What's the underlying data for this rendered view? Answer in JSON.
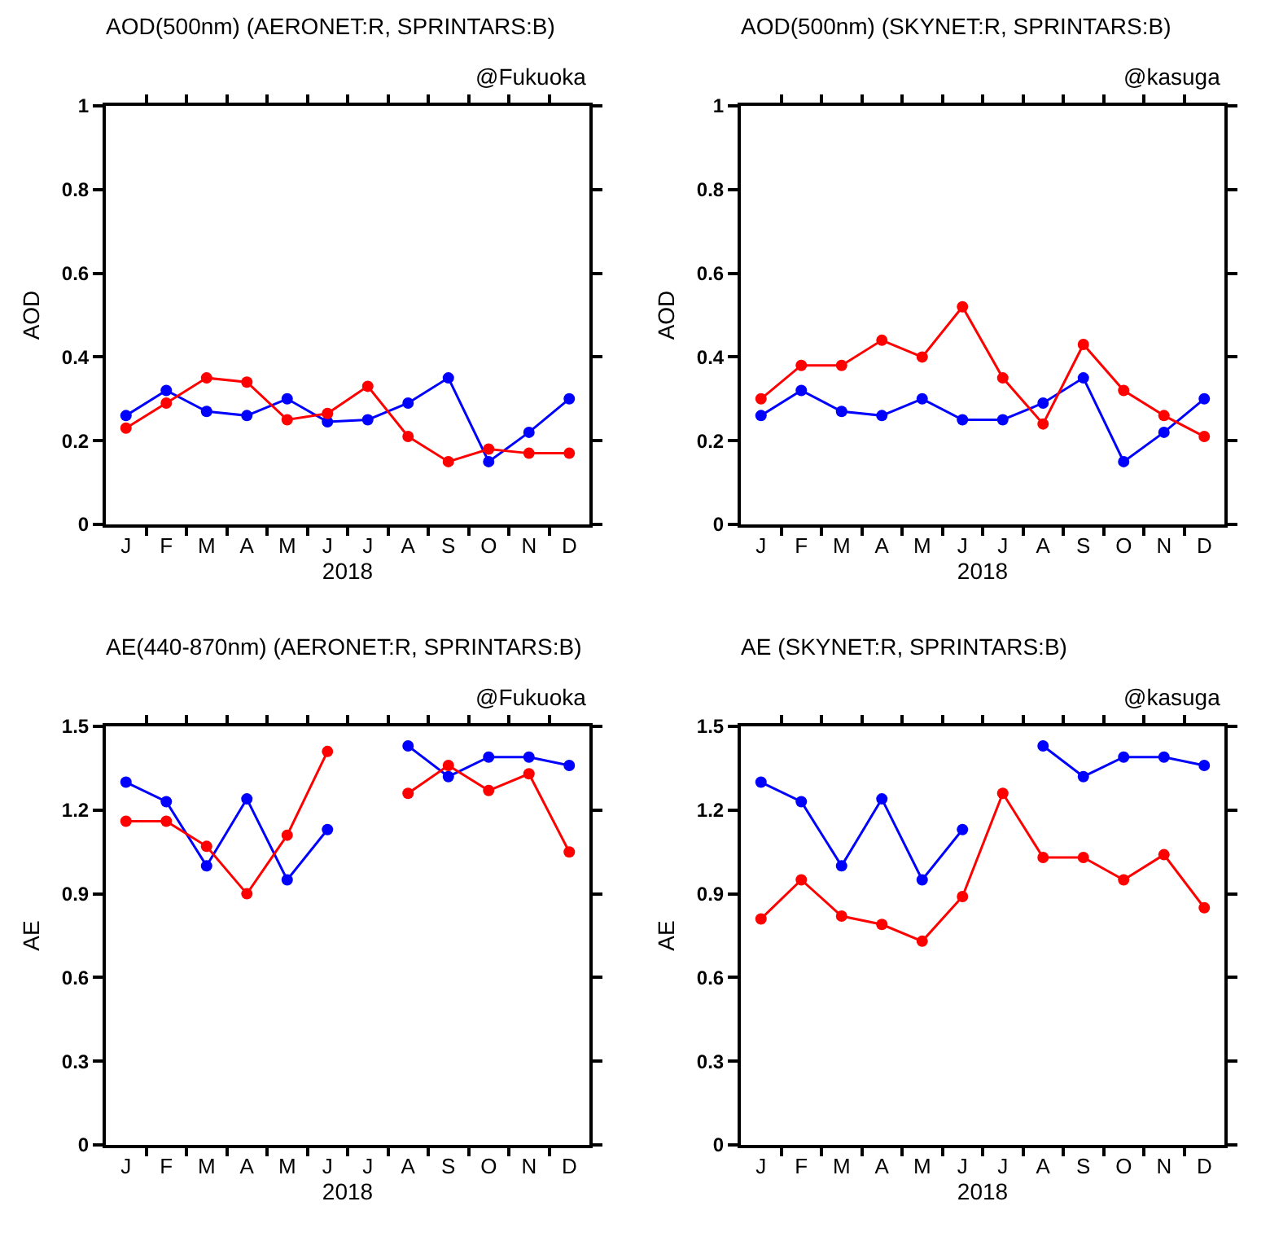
{
  "chart_data": [
    {
      "type": "line",
      "title": "AOD(500nm) (AERONET:R, SPRINTARS:B)",
      "subtitle": "@Fukuoka",
      "xlabel": "2018",
      "ylabel": "AOD",
      "categories": [
        "J",
        "F",
        "M",
        "A",
        "M",
        "J",
        "J",
        "A",
        "S",
        "O",
        "N",
        "D"
      ],
      "series": [
        {
          "color": "#0000ff",
          "values": [
            0.26,
            0.32,
            0.27,
            0.26,
            0.3,
            0.245,
            0.25,
            0.29,
            0.35,
            0.15,
            0.22,
            0.3
          ]
        },
        {
          "color": "#ff0000",
          "values": [
            0.23,
            0.29,
            0.35,
            0.34,
            0.25,
            0.265,
            0.33,
            0.21,
            0.15,
            0.18,
            0.17,
            0.17
          ]
        }
      ],
      "ylim": [
        0,
        1
      ],
      "yticks": [
        0,
        0.2,
        0.4,
        0.6,
        0.8,
        1
      ],
      "marker": "circle",
      "grid": false
    },
    {
      "type": "line",
      "title": "AOD(500nm) (SKYNET:R, SPRINTARS:B)",
      "subtitle": "@kasuga",
      "xlabel": "2018",
      "ylabel": "AOD",
      "categories": [
        "J",
        "F",
        "M",
        "A",
        "M",
        "J",
        "J",
        "A",
        "S",
        "O",
        "N",
        "D"
      ],
      "series": [
        {
          "color": "#0000ff",
          "values": [
            0.26,
            0.32,
            0.27,
            0.26,
            0.3,
            0.25,
            0.25,
            0.29,
            0.35,
            0.15,
            0.22,
            0.3
          ]
        },
        {
          "color": "#ff0000",
          "values": [
            0.3,
            0.38,
            0.38,
            0.44,
            0.4,
            0.52,
            0.35,
            0.24,
            0.43,
            0.32,
            0.26,
            0.21
          ]
        }
      ],
      "ylim": [
        0,
        1
      ],
      "yticks": [
        0,
        0.2,
        0.4,
        0.6,
        0.8,
        1
      ],
      "marker": "circle",
      "grid": false
    },
    {
      "type": "line",
      "title": "AE(440-870nm) (AERONET:R, SPRINTARS:B)",
      "subtitle": "@Fukuoka",
      "xlabel": "2018",
      "ylabel": "AE",
      "categories": [
        "J",
        "F",
        "M",
        "A",
        "M",
        "J",
        "J",
        "A",
        "S",
        "O",
        "N",
        "D"
      ],
      "series": [
        {
          "color": "#0000ff",
          "values": [
            1.3,
            1.23,
            1.0,
            1.24,
            0.95,
            1.13,
            null,
            1.43,
            1.32,
            1.39,
            1.39,
            1.36
          ]
        },
        {
          "color": "#ff0000",
          "values": [
            1.16,
            1.16,
            1.07,
            0.9,
            1.11,
            1.41,
            null,
            1.26,
            1.36,
            1.27,
            1.33,
            1.05
          ]
        }
      ],
      "ylim": [
        0,
        1.5
      ],
      "yticks": [
        0,
        0.3,
        0.6,
        0.9,
        1.2,
        1.5
      ],
      "marker": "circle",
      "grid": false
    },
    {
      "type": "line",
      "title": "AE (SKYNET:R, SPRINTARS:B)",
      "subtitle": "@kasuga",
      "xlabel": "2018",
      "ylabel": "AE",
      "categories": [
        "J",
        "F",
        "M",
        "A",
        "M",
        "J",
        "J",
        "A",
        "S",
        "O",
        "N",
        "D"
      ],
      "series": [
        {
          "color": "#0000ff",
          "values": [
            1.3,
            1.23,
            1.0,
            1.24,
            0.95,
            1.13,
            null,
            1.43,
            1.32,
            1.39,
            1.39,
            1.36
          ]
        },
        {
          "color": "#ff0000",
          "values": [
            0.81,
            0.95,
            0.82,
            0.79,
            0.73,
            0.89,
            1.26,
            1.03,
            1.03,
            0.95,
            1.04,
            0.85
          ]
        }
      ],
      "ylim": [
        0,
        1.5
      ],
      "yticks": [
        0,
        0.3,
        0.6,
        0.9,
        1.2,
        1.5
      ],
      "marker": "circle",
      "grid": false
    }
  ]
}
